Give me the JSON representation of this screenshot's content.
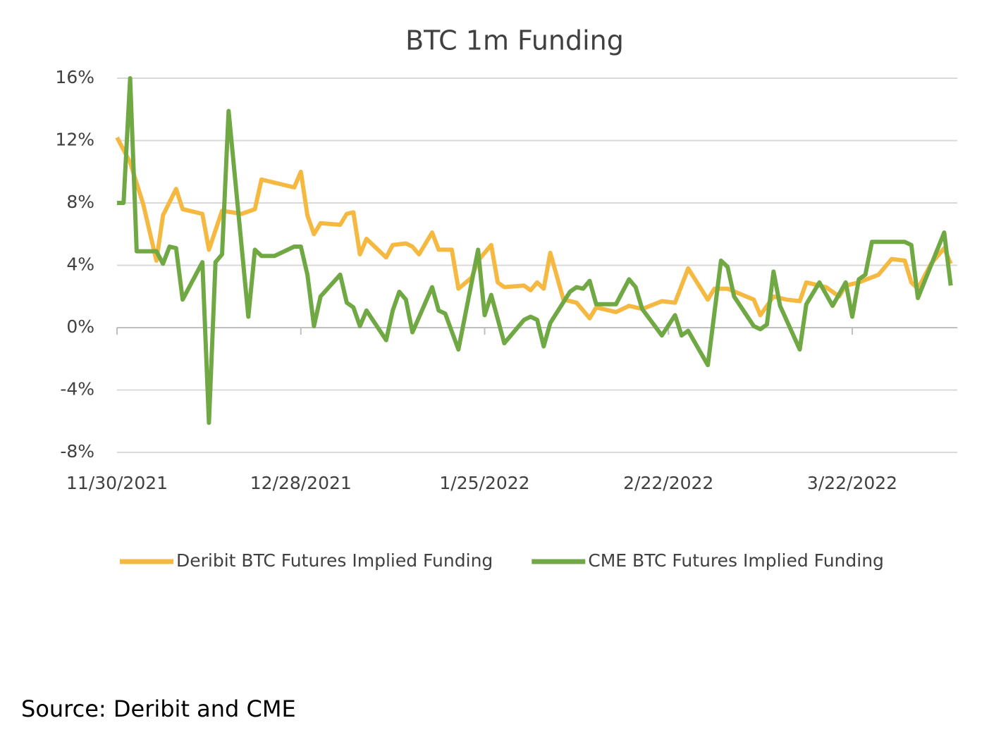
{
  "chart_data": {
    "type": "line",
    "title": "BTC 1m Funding",
    "source": "Source: Deribit and CME",
    "xlim": [
      "11/30/2021",
      "4/7/2022"
    ],
    "xticks": [
      "11/30/2021",
      "12/28/2021",
      "1/25/2022",
      "2/22/2022",
      "3/22/2022"
    ],
    "ylim": [
      -8,
      16
    ],
    "yticks": [
      {
        "value": -8,
        "label": "-8%"
      },
      {
        "value": -4,
        "label": "-4%"
      },
      {
        "value": 0,
        "label": "0%"
      },
      {
        "value": 4,
        "label": "4%"
      },
      {
        "value": 8,
        "label": "8%"
      },
      {
        "value": 12,
        "label": "12%"
      },
      {
        "value": 16,
        "label": "16%"
      }
    ],
    "grid": true,
    "legend": "bottom",
    "series": [
      {
        "name": "Deribit BTC Futures Implied Funding",
        "color": "#f5b942",
        "x": [
          "11/30/2021",
          "12/2/2021",
          "12/4/2021",
          "12/6/2021",
          "12/7/2021",
          "12/9/2021",
          "12/10/2021",
          "12/13/2021",
          "12/14/2021",
          "12/16/2021",
          "12/19/2021",
          "12/21/2021",
          "12/22/2021",
          "12/27/2021",
          "12/28/2021",
          "12/29/2021",
          "12/30/2021",
          "12/31/2021",
          "1/3/2022",
          "1/4/2022",
          "1/5/2022",
          "1/6/2022",
          "1/7/2022",
          "1/10/2022",
          "1/11/2022",
          "1/13/2022",
          "1/14/2022",
          "1/15/2022",
          "1/17/2022",
          "1/18/2022",
          "1/20/2022",
          "1/21/2022",
          "1/23/2022",
          "1/24/2022",
          "1/26/2022",
          "1/27/2022",
          "1/28/2022",
          "1/31/2022",
          "2/1/2022",
          "2/2/2022",
          "2/3/2022",
          "2/4/2022",
          "2/6/2022",
          "2/8/2022",
          "2/10/2022",
          "2/11/2022",
          "2/14/2022",
          "2/16/2022",
          "2/18/2022",
          "2/21/2022",
          "2/23/2022",
          "2/25/2022",
          "2/28/2022",
          "3/1/2022",
          "3/3/2022",
          "3/7/2022",
          "3/8/2022",
          "3/10/2022",
          "3/12/2022",
          "3/14/2022",
          "3/15/2022",
          "3/18/2022",
          "3/20/2022",
          "3/21/2022",
          "3/23/2022",
          "3/26/2022",
          "3/28/2022",
          "3/30/2022",
          "3/31/2022",
          "4/1/2022",
          "4/3/2022",
          "4/5/2022",
          "4/6/2022"
        ],
        "values": [
          12.2,
          10.6,
          7.9,
          4.3,
          7.2,
          8.9,
          7.6,
          7.3,
          5.0,
          7.5,
          7.3,
          7.6,
          9.5,
          9.0,
          10.0,
          7.2,
          6.0,
          6.7,
          6.6,
          7.3,
          7.4,
          4.7,
          5.7,
          4.5,
          5.3,
          5.4,
          5.2,
          4.7,
          6.1,
          5.0,
          5.0,
          2.5,
          3.2,
          4.3,
          5.3,
          2.9,
          2.6,
          2.7,
          2.4,
          2.9,
          2.5,
          4.8,
          1.8,
          1.6,
          0.6,
          1.3,
          1.0,
          1.4,
          1.2,
          1.7,
          1.6,
          3.8,
          1.8,
          2.5,
          2.5,
          1.8,
          0.8,
          2.0,
          1.8,
          1.7,
          2.9,
          2.6,
          2.0,
          2.7,
          2.9,
          3.4,
          4.4,
          4.3,
          2.9,
          2.5,
          4.1,
          5.1,
          4.1
        ]
      },
      {
        "name": "CME BTC Futures Implied Funding",
        "color": "#70a844",
        "x": [
          "11/30/2021",
          "12/1/2021",
          "12/2/2021",
          "12/3/2021",
          "12/6/2021",
          "12/7/2021",
          "12/8/2021",
          "12/9/2021",
          "12/10/2021",
          "12/13/2021",
          "12/14/2021",
          "12/15/2021",
          "12/16/2021",
          "12/17/2021",
          "12/20/2021",
          "12/21/2021",
          "12/22/2021",
          "12/24/2021",
          "12/27/2021",
          "12/28/2021",
          "12/29/2021",
          "12/30/2021",
          "12/31/2021",
          "1/3/2022",
          "1/4/2022",
          "1/5/2022",
          "1/6/2022",
          "1/7/2022",
          "1/10/2022",
          "1/11/2022",
          "1/12/2022",
          "1/13/2022",
          "1/14/2022",
          "1/17/2022",
          "1/18/2022",
          "1/19/2022",
          "1/21/2022",
          "1/24/2022",
          "1/25/2022",
          "1/26/2022",
          "1/28/2022",
          "1/31/2022",
          "2/1/2022",
          "2/2/2022",
          "2/3/2022",
          "2/4/2022",
          "2/7/2022",
          "2/8/2022",
          "2/9/2022",
          "2/10/2022",
          "2/11/2022",
          "2/14/2022",
          "2/16/2022",
          "2/17/2022",
          "2/18/2022",
          "2/21/2022",
          "2/23/2022",
          "2/24/2022",
          "2/25/2022",
          "2/28/2022",
          "3/2/2022",
          "3/3/2022",
          "3/4/2022",
          "3/7/2022",
          "3/8/2022",
          "3/9/2022",
          "3/10/2022",
          "3/11/2022",
          "3/14/2022",
          "3/15/2022",
          "3/17/2022",
          "3/19/2022",
          "3/21/2022",
          "3/22/2022",
          "3/23/2022",
          "3/24/2022",
          "3/25/2022",
          "3/30/2022",
          "3/31/2022",
          "4/1/2022",
          "4/5/2022",
          "4/6/2022"
        ],
        "values": [
          8.0,
          8.0,
          16.0,
          4.9,
          4.9,
          4.1,
          5.2,
          5.1,
          1.8,
          4.2,
          -6.1,
          4.2,
          4.7,
          13.9,
          0.7,
          5.0,
          4.6,
          4.6,
          5.2,
          5.2,
          3.4,
          0.1,
          2.0,
          3.4,
          1.6,
          1.3,
          0.1,
          1.1,
          -0.8,
          1.1,
          2.3,
          1.8,
          -0.3,
          2.6,
          1.1,
          0.9,
          -1.4,
          5.0,
          0.8,
          2.1,
          -1.0,
          0.5,
          0.7,
          0.5,
          -1.2,
          0.3,
          2.3,
          2.6,
          2.5,
          3.0,
          1.5,
          1.5,
          3.1,
          2.6,
          1.2,
          -0.5,
          0.8,
          -0.5,
          -0.2,
          -2.4,
          4.3,
          3.9,
          2.0,
          0.1,
          -0.1,
          0.2,
          3.6,
          1.4,
          -1.4,
          1.5,
          2.9,
          1.4,
          2.9,
          0.7,
          3.1,
          3.4,
          5.5,
          5.5,
          5.3,
          1.9,
          6.1,
          2.7
        ]
      }
    ]
  }
}
